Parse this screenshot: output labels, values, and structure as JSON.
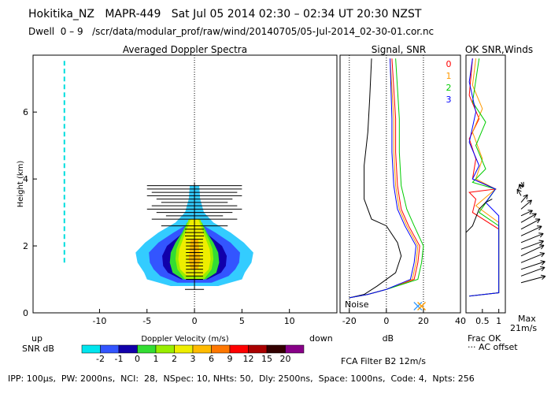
{
  "header": {
    "title": "Hokitika_NZ   MAPR-449   Sat Jul 05 2014 02:30 – 02:34 UT 20:30 NZST",
    "subtitle": "Dwell  0 – 9   /scr/data/modular_prof/raw/wind/20140705/05-Jul-2014_02-30-01.cor.nc"
  },
  "footer": {
    "params": "IPP: 100μs,  PW: 2000ns,  NCI:  28,  NSpec: 10, NHts: 50,  Dly: 2500ns,  Space: 1000ns,  Code: 4,  Npts: 256"
  },
  "labels": {
    "up": "up",
    "down": "down",
    "snr_db": "SNR dB",
    "noise": "Noise",
    "frac_ok": "Frac OK",
    "ac_offset": "··· AC offset",
    "max": "Max",
    "max_value": "21m/s",
    "fca": "FCA Filter B2 12m/s"
  },
  "colors": {
    "beam0": "#ff0000",
    "beam1": "#ff9900",
    "beam2": "#00cc00",
    "beam3": "#0000ff",
    "noise_marker": "#3399ff"
  },
  "chart_data": [
    {
      "type": "heatmap",
      "title": "Averaged Doppler Spectra",
      "xlabel": "Doppler Velocity (m/s)",
      "ylabel": "Height (km)",
      "xlim": [
        -17,
        15
      ],
      "ylim": [
        0,
        7.7
      ],
      "x_ticks": [
        -10,
        -5,
        0,
        5,
        10
      ],
      "y_ticks": [
        0,
        2,
        4,
        6
      ],
      "colorbar": {
        "label": "SNR dB",
        "ticks": [
          "-2",
          "-1",
          "0",
          "1",
          "2",
          "3",
          "6",
          "9",
          "12",
          "15",
          "20"
        ],
        "colors": [
          "#00e5ee",
          "#3355ff",
          "#1100aa",
          "#33dd33",
          "#99ee00",
          "#eeee00",
          "#ffbb00",
          "#ff7700",
          "#ff0000",
          "#aa0000",
          "#330000",
          "#880088"
        ]
      },
      "layers": [
        {
          "snr": -2,
          "color": "#33ccff",
          "widths": [
            [
              0.8,
              2.5
            ],
            [
              1.0,
              5.0
            ],
            [
              1.2,
              5.3
            ],
            [
              1.5,
              6.0
            ],
            [
              1.8,
              6.2
            ],
            [
              2.1,
              5.2
            ],
            [
              2.4,
              3.8
            ],
            [
              2.7,
              2.0
            ],
            [
              3.0,
              1.0
            ],
            [
              3.4,
              0.6
            ],
            [
              3.8,
              0.5
            ]
          ]
        },
        {
          "snr": -1,
          "color": "#3355ff",
          "widths": [
            [
              0.9,
              1.8
            ],
            [
              1.1,
              3.6
            ],
            [
              1.3,
              4.3
            ],
            [
              1.5,
              4.7
            ],
            [
              1.8,
              4.8
            ],
            [
              2.1,
              3.8
            ],
            [
              2.4,
              2.2
            ],
            [
              2.6,
              1.0
            ]
          ]
        },
        {
          "snr": 0,
          "color": "#1100aa",
          "widths": [
            [
              1.0,
              1.4
            ],
            [
              1.2,
              2.8
            ],
            [
              1.4,
              3.3
            ],
            [
              1.7,
              3.4
            ],
            [
              2.0,
              2.9
            ],
            [
              2.3,
              1.6
            ],
            [
              2.5,
              0.9
            ]
          ]
        },
        {
          "snr": 1,
          "color": "#33dd33",
          "widths": [
            [
              1.0,
              1.2
            ],
            [
              1.2,
              2.3
            ],
            [
              1.5,
              2.6
            ],
            [
              1.8,
              2.5
            ],
            [
              2.1,
              2.0
            ],
            [
              2.4,
              1.3
            ],
            [
              2.7,
              0.8
            ]
          ]
        },
        {
          "snr": 2,
          "color": "#99ee00",
          "widths": [
            [
              1.0,
              1.0
            ],
            [
              1.3,
              1.8
            ],
            [
              1.6,
              2.0
            ],
            [
              1.9,
              1.9
            ],
            [
              2.2,
              1.5
            ],
            [
              2.5,
              1.0
            ],
            [
              2.8,
              0.6
            ]
          ]
        },
        {
          "snr": 3,
          "color": "#eeee00",
          "widths": [
            [
              1.1,
              0.8
            ],
            [
              1.3,
              1.5
            ],
            [
              1.6,
              1.7
            ],
            [
              1.9,
              1.6
            ],
            [
              2.2,
              1.2
            ],
            [
              2.5,
              0.8
            ],
            [
              2.8,
              0.4
            ]
          ]
        },
        {
          "snr": 6,
          "color": "#ffbb00",
          "widths": [
            [
              1.3,
              0.4
            ],
            [
              1.6,
              0.6
            ],
            [
              1.9,
              0.5
            ],
            [
              2.2,
              0.4
            ]
          ]
        }
      ],
      "noise_segments": [
        [
          1.5,
          7.6
        ]
      ],
      "noise_velocity": -13.7,
      "error_bar_heights": [
        0.7,
        1.0,
        1.1,
        1.2,
        1.3,
        1.4,
        1.5,
        1.6,
        1.7,
        1.8,
        1.9,
        2.0,
        2.1,
        2.2,
        2.3,
        2.4,
        2.5,
        2.6,
        2.8,
        2.9,
        3.0,
        3.1,
        3.2,
        3.3,
        3.4,
        3.5,
        3.6,
        3.7,
        3.8
      ],
      "error_bar_halfwidths": [
        1.0,
        0.9,
        0.9,
        0.9,
        0.9,
        0.9,
        0.9,
        0.9,
        0.9,
        0.9,
        0.9,
        0.9,
        0.9,
        0.9,
        1.0,
        1.0,
        1.0,
        3.5,
        4.5,
        3.0,
        4.0,
        5.0,
        4.5,
        3.5,
        4.0,
        5.0,
        4.5,
        5.0,
        5.0
      ]
    },
    {
      "type": "line",
      "title": "Signal, SNR",
      "xlabel": "dB",
      "xlim": [
        -25,
        40
      ],
      "ylim": [
        0,
        7.7
      ],
      "x_ticks": [
        -20,
        0,
        20,
        40
      ],
      "dotted_x": [
        -20,
        0,
        20
      ],
      "series": [
        {
          "points": [
            [
              -20,
              0.45
            ],
            [
              -12,
              0.55
            ],
            [
              -5,
              0.8
            ],
            [
              5,
              1.2
            ],
            [
              8,
              1.7
            ],
            [
              6,
              2.1
            ],
            [
              0,
              2.6
            ],
            [
              -8,
              2.8
            ],
            [
              -12,
              3.4
            ],
            [
              -12,
              4.4
            ],
            [
              -10,
              5.4
            ],
            [
              -9,
              6.4
            ],
            [
              -8,
              7.6
            ]
          ],
          "color": "#000000"
        },
        {
          "points": [
            [
              -20,
              0.45
            ],
            [
              -10,
              0.55
            ],
            [
              0,
              0.7
            ],
            [
              15,
              1.0
            ],
            [
              17,
              1.5
            ],
            [
              18,
              2.0
            ],
            [
              12,
              2.6
            ],
            [
              8,
              3.1
            ],
            [
              6,
              3.8
            ],
            [
              5,
              4.8
            ],
            [
              5,
              5.8
            ],
            [
              3,
              7.6
            ]
          ],
          "color": "#ff0000"
        },
        {
          "points": [
            [
              -20,
              0.45
            ],
            [
              -10,
              0.55
            ],
            [
              0,
              0.7
            ],
            [
              14,
              1.0
            ],
            [
              16,
              1.5
            ],
            [
              17,
              2.0
            ],
            [
              11,
              2.6
            ],
            [
              7,
              3.1
            ],
            [
              5,
              3.8
            ],
            [
              4,
              4.8
            ],
            [
              4,
              5.8
            ],
            [
              2,
              7.6
            ]
          ],
          "color": "#ff9900"
        },
        {
          "points": [
            [
              -20,
              0.45
            ],
            [
              -10,
              0.55
            ],
            [
              0,
              0.7
            ],
            [
              17,
              1.0
            ],
            [
              19,
              1.5
            ],
            [
              20,
              2.0
            ],
            [
              15,
              2.6
            ],
            [
              11,
              3.1
            ],
            [
              8,
              3.8
            ],
            [
              7,
              4.8
            ],
            [
              7,
              5.8
            ],
            [
              5,
              7.6
            ]
          ],
          "color": "#00cc00"
        },
        {
          "points": [
            [
              -20,
              0.45
            ],
            [
              -10,
              0.55
            ],
            [
              0,
              0.7
            ],
            [
              13,
              1.0
            ],
            [
              15,
              1.5
            ],
            [
              16,
              2.0
            ],
            [
              10,
              2.6
            ],
            [
              6,
              3.1
            ],
            [
              4,
              3.8
            ],
            [
              3,
              4.8
            ],
            [
              3,
              5.8
            ],
            [
              2,
              7.6
            ]
          ],
          "color": "#0000ff"
        }
      ],
      "noise_markers": [
        {
          "x": 17,
          "y": 0.2,
          "color": "#3399ff"
        },
        {
          "x": 19,
          "y": 0.2,
          "color": "#ff9900"
        }
      ]
    },
    {
      "type": "line",
      "title": "OK SNR,Winds",
      "xlabel": "",
      "xlim": [
        0,
        1.2
      ],
      "ylim": [
        0,
        7.7
      ],
      "x_ticks": [
        0.5,
        1
      ],
      "x_tick_labels": [
        "0.5",
        "1"
      ],
      "legend": [
        "0",
        "1",
        "2",
        "3"
      ],
      "series": [
        {
          "points": [
            [
              0.1,
              0.5
            ],
            [
              1.0,
              0.6
            ],
            [
              1.0,
              2.5
            ],
            [
              0.2,
              3.0
            ],
            [
              0.3,
              3.4
            ],
            [
              0.1,
              3.6
            ],
            [
              0.9,
              3.7
            ],
            [
              0.2,
              4.0
            ],
            [
              0.3,
              4.6
            ],
            [
              0.1,
              5.2
            ],
            [
              0.4,
              5.8
            ],
            [
              0.1,
              6.5
            ],
            [
              0.2,
              7.6
            ]
          ],
          "color": "#ff0000"
        },
        {
          "points": [
            [
              0.1,
              0.5
            ],
            [
              1.0,
              0.6
            ],
            [
              1.0,
              2.7
            ],
            [
              0.3,
              3.2
            ],
            [
              0.9,
              3.7
            ],
            [
              0.3,
              4.0
            ],
            [
              0.5,
              4.6
            ],
            [
              0.2,
              5.4
            ],
            [
              0.5,
              6.1
            ],
            [
              0.2,
              6.8
            ],
            [
              0.3,
              7.6
            ]
          ],
          "color": "#ff9900"
        },
        {
          "points": [
            [
              0.1,
              0.5
            ],
            [
              1.0,
              0.6
            ],
            [
              1.0,
              2.6
            ],
            [
              0.4,
              3.0
            ],
            [
              0.9,
              3.7
            ],
            [
              0.2,
              3.9
            ],
            [
              0.6,
              4.3
            ],
            [
              0.3,
              5.0
            ],
            [
              0.6,
              5.7
            ],
            [
              0.2,
              6.3
            ],
            [
              0.4,
              7.6
            ]
          ],
          "color": "#00cc00"
        },
        {
          "points": [
            [
              0.1,
              0.5
            ],
            [
              1.0,
              0.6
            ],
            [
              1.0,
              2.9
            ],
            [
              0.6,
              3.3
            ],
            [
              0.9,
              3.7
            ],
            [
              0.2,
              4.0
            ],
            [
              0.4,
              4.4
            ],
            [
              0.1,
              5.1
            ],
            [
              0.3,
              6.0
            ],
            [
              0.1,
              6.9
            ],
            [
              0.2,
              7.6
            ]
          ],
          "color": "#0000ff"
        },
        {
          "points": [
            [
              0.0,
              2.4
            ],
            [
              0.2,
              2.6
            ],
            [
              0.4,
              3.1
            ],
            [
              0.6,
              3.3
            ],
            [
              0.8,
              3.4
            ]
          ],
          "color": "#000000"
        }
      ],
      "wind_barbs": [
        {
          "height": 0.9,
          "angle": -15,
          "len": 1.0
        },
        {
          "height": 1.1,
          "angle": -20,
          "len": 1.0
        },
        {
          "height": 1.3,
          "angle": -18,
          "len": 1.0
        },
        {
          "height": 1.5,
          "angle": -22,
          "len": 1.0
        },
        {
          "height": 1.7,
          "angle": -25,
          "len": 1.0
        },
        {
          "height": 1.9,
          "angle": -20,
          "len": 0.95
        },
        {
          "height": 2.1,
          "angle": -22,
          "len": 0.95
        },
        {
          "height": 2.3,
          "angle": -25,
          "len": 0.9
        },
        {
          "height": 2.5,
          "angle": -28,
          "len": 0.85
        },
        {
          "height": 2.7,
          "angle": -30,
          "len": 0.7
        },
        {
          "height": 2.9,
          "angle": -25,
          "len": 0.5
        },
        {
          "height": 3.1,
          "angle": -40,
          "len": 0.55
        },
        {
          "height": 3.3,
          "angle": -50,
          "len": 0.4
        },
        {
          "height": 3.5,
          "angle": -120,
          "len": 0.3
        },
        {
          "height": 3.7,
          "angle": -110,
          "len": 0.2
        },
        {
          "height": 3.9,
          "angle": 60,
          "len": 0.2
        }
      ]
    }
  ]
}
